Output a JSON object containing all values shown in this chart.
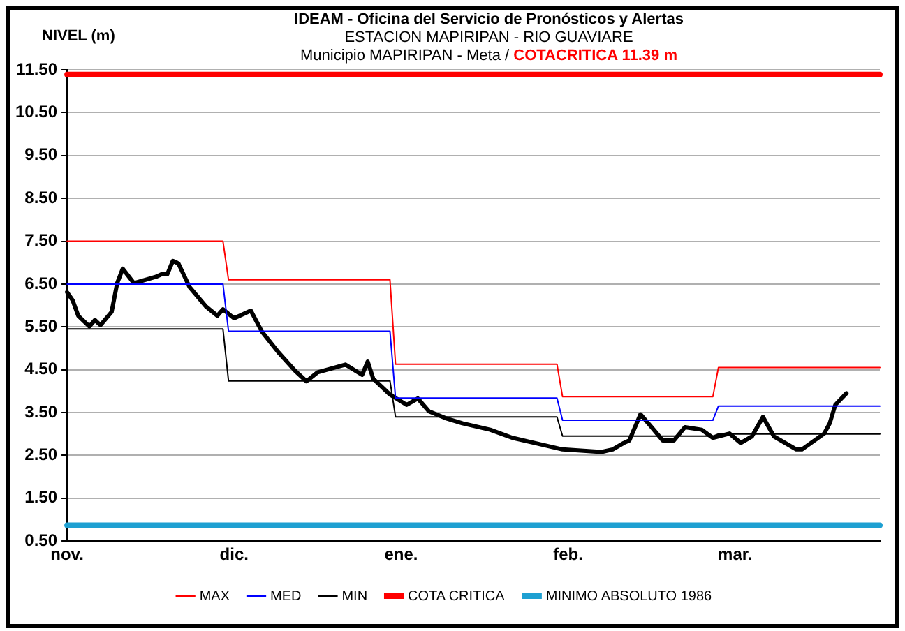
{
  "chart_data": {
    "type": "line",
    "title": "IDEAM - Oficina del Servicio de Pronósticos y Alertas",
    "subtitle": "ESTACION MAPIRIPAN -  RIO GUAVIARE\nMunicipio MAPIRIPAN -  Meta  /",
    "annotations": [
      "COTACRITICA 11.39 m"
    ],
    "ylabel": "NIVEL (m)",
    "categories": [
      "nov.",
      null,
      null,
      null,
      null,
      null,
      null,
      null,
      null,
      null,
      null,
      null,
      null,
      null,
      null,
      null,
      null,
      null,
      null,
      null,
      null,
      null,
      null,
      null,
      null,
      null,
      null,
      null,
      null,
      null,
      "dic.",
      null,
      null,
      null,
      null,
      null,
      null,
      null,
      null,
      null,
      null,
      null,
      null,
      null,
      null,
      null,
      null,
      null,
      null,
      null,
      null,
      null,
      null,
      null,
      null,
      null,
      null,
      null,
      null,
      null,
      "ene.",
      null,
      null,
      null,
      null,
      null,
      null,
      null,
      null,
      null,
      null,
      null,
      null,
      null,
      null,
      null,
      null,
      null,
      null,
      null,
      null,
      null,
      null,
      null,
      null,
      null,
      null,
      null,
      null,
      null,
      "feb.",
      null,
      null,
      null,
      null,
      null,
      null,
      null,
      null,
      null,
      null,
      null,
      null,
      null,
      null,
      null,
      null,
      null,
      null,
      null,
      null,
      null,
      null,
      null,
      null,
      null,
      null,
      null,
      null,
      null,
      "mar.",
      null,
      null,
      null,
      null,
      null,
      null,
      null,
      null,
      null,
      null,
      null,
      null,
      null,
      null,
      null,
      null,
      null,
      null,
      null,
      null,
      null,
      null,
      null,
      null,
      null,
      null
    ],
    "ylim": [
      0.5,
      11.5
    ],
    "yticks": [
      {
        "value": 0.5,
        "label": "0.50"
      },
      {
        "value": 1.5,
        "label": "1.50"
      },
      {
        "value": 2.5,
        "label": "2.50"
      },
      {
        "value": 3.5,
        "label": "3.50"
      },
      {
        "value": 4.5,
        "label": "4.50"
      },
      {
        "value": 5.5,
        "label": "5.50"
      },
      {
        "value": 6.5,
        "label": "6.50"
      },
      {
        "value": 7.5,
        "label": "7.50"
      },
      {
        "value": 8.5,
        "label": "8.50"
      },
      {
        "value": 9.5,
        "label": "9.50"
      },
      {
        "value": 10.5,
        "label": "10.50"
      },
      {
        "value": 11.5,
        "label": "11.50"
      }
    ],
    "grid": "y",
    "legend": "bottom",
    "marker": "none",
    "line_style": "solid",
    "series": [
      {
        "name": "MAX",
        "color": "#ff0000",
        "values": [
          7.5,
          null,
          null,
          null,
          null,
          null,
          null,
          null,
          null,
          null,
          null,
          null,
          null,
          null,
          null,
          null,
          null,
          null,
          null,
          null,
          null,
          null,
          null,
          null,
          null,
          null,
          null,
          null,
          7.5,
          6.6,
          null,
          null,
          null,
          null,
          null,
          null,
          null,
          null,
          null,
          null,
          null,
          null,
          null,
          null,
          null,
          null,
          null,
          null,
          null,
          null,
          null,
          null,
          null,
          null,
          null,
          null,
          null,
          null,
          6.6,
          4.63,
          null,
          null,
          null,
          null,
          null,
          null,
          null,
          null,
          null,
          null,
          null,
          null,
          null,
          null,
          null,
          null,
          null,
          null,
          null,
          null,
          null,
          null,
          null,
          null,
          null,
          null,
          null,
          null,
          4.63,
          3.87,
          null,
          null,
          null,
          null,
          null,
          null,
          null,
          null,
          null,
          null,
          null,
          null,
          null,
          null,
          null,
          null,
          null,
          null,
          null,
          null,
          null,
          null,
          null,
          null,
          null,
          null,
          3.87,
          4.55,
          null,
          null,
          null,
          null,
          null,
          null,
          null,
          null,
          null,
          null,
          null,
          null,
          null,
          null,
          null,
          null,
          null,
          null,
          null,
          null,
          null,
          null,
          null,
          null,
          null,
          null,
          null,
          null,
          4.55
        ]
      },
      {
        "name": "MED",
        "color": "#0000ff",
        "values": [
          6.5,
          null,
          null,
          null,
          null,
          null,
          null,
          null,
          null,
          null,
          null,
          null,
          null,
          null,
          null,
          null,
          null,
          null,
          null,
          null,
          null,
          null,
          null,
          null,
          null,
          null,
          null,
          null,
          6.5,
          5.4,
          null,
          null,
          null,
          null,
          null,
          null,
          null,
          null,
          null,
          null,
          null,
          null,
          null,
          null,
          null,
          null,
          null,
          null,
          null,
          null,
          null,
          null,
          null,
          null,
          null,
          null,
          null,
          null,
          5.4,
          3.84,
          null,
          null,
          null,
          null,
          null,
          null,
          null,
          null,
          null,
          null,
          null,
          null,
          null,
          null,
          null,
          null,
          null,
          null,
          null,
          null,
          null,
          null,
          null,
          null,
          null,
          null,
          null,
          null,
          3.84,
          3.32,
          null,
          null,
          null,
          null,
          null,
          null,
          null,
          null,
          null,
          null,
          null,
          null,
          null,
          null,
          null,
          null,
          null,
          null,
          null,
          null,
          null,
          null,
          null,
          null,
          null,
          null,
          3.32,
          3.65,
          null,
          null,
          null,
          null,
          null,
          null,
          null,
          null,
          null,
          null,
          null,
          null,
          null,
          null,
          null,
          null,
          null,
          null,
          null,
          null,
          null,
          null,
          null,
          null,
          null,
          null,
          null,
          null,
          3.65
        ]
      },
      {
        "name": "MIN",
        "color": "#000000",
        "values": [
          5.45,
          null,
          null,
          null,
          null,
          null,
          null,
          null,
          null,
          null,
          null,
          null,
          null,
          null,
          null,
          null,
          null,
          null,
          null,
          null,
          null,
          null,
          null,
          null,
          null,
          null,
          null,
          null,
          5.45,
          4.24,
          null,
          null,
          null,
          null,
          null,
          null,
          null,
          null,
          null,
          null,
          null,
          null,
          null,
          null,
          null,
          null,
          null,
          null,
          null,
          null,
          null,
          null,
          null,
          null,
          null,
          null,
          null,
          null,
          4.24,
          3.4,
          null,
          null,
          null,
          null,
          null,
          null,
          null,
          null,
          null,
          null,
          null,
          null,
          null,
          null,
          null,
          null,
          null,
          null,
          null,
          null,
          null,
          null,
          null,
          null,
          null,
          null,
          null,
          null,
          3.4,
          2.95,
          null,
          null,
          null,
          null,
          null,
          null,
          null,
          null,
          null,
          null,
          null,
          null,
          null,
          null,
          null,
          null,
          null,
          null,
          null,
          null,
          null,
          null,
          null,
          null,
          null,
          null,
          2.95,
          3.0,
          null,
          null,
          null,
          null,
          null,
          null,
          null,
          null,
          null,
          null,
          null,
          null,
          null,
          null,
          null,
          null,
          null,
          null,
          null,
          null,
          null,
          null,
          null,
          null,
          null,
          null,
          null,
          null,
          3.0
        ]
      },
      {
        "name": "COTA CRITICA",
        "color": "#ff0000",
        "values": [
          11.39,
          null,
          null,
          null,
          null,
          null,
          null,
          null,
          null,
          null,
          null,
          null,
          null,
          null,
          null,
          null,
          null,
          null,
          null,
          null,
          null,
          null,
          null,
          null,
          null,
          null,
          null,
          null,
          null,
          null,
          null,
          null,
          null,
          null,
          null,
          null,
          null,
          null,
          null,
          null,
          null,
          null,
          null,
          null,
          null,
          null,
          null,
          null,
          null,
          null,
          null,
          null,
          null,
          null,
          null,
          null,
          null,
          null,
          null,
          null,
          null,
          null,
          null,
          null,
          null,
          null,
          null,
          null,
          null,
          null,
          null,
          null,
          null,
          null,
          null,
          null,
          null,
          null,
          null,
          null,
          null,
          null,
          null,
          null,
          null,
          null,
          null,
          null,
          null,
          null,
          null,
          null,
          null,
          null,
          null,
          null,
          null,
          null,
          null,
          null,
          null,
          null,
          null,
          null,
          null,
          null,
          null,
          null,
          null,
          null,
          null,
          null,
          null,
          null,
          null,
          null,
          null,
          null,
          null,
          null,
          null,
          null,
          null,
          null,
          null,
          null,
          null,
          null,
          null,
          null,
          null,
          null,
          null,
          null,
          null,
          null,
          null,
          null,
          null,
          null,
          null,
          null,
          null,
          null,
          null,
          null,
          11.39
        ]
      },
      {
        "name": "MINIMO ABSOLUTO 1986",
        "color": "#1ea0d2",
        "values": [
          0.87,
          null,
          null,
          null,
          null,
          null,
          null,
          null,
          null,
          null,
          null,
          null,
          null,
          null,
          null,
          null,
          null,
          null,
          null,
          null,
          null,
          null,
          null,
          null,
          null,
          null,
          null,
          null,
          null,
          null,
          null,
          null,
          null,
          null,
          null,
          null,
          null,
          null,
          null,
          null,
          null,
          null,
          null,
          null,
          null,
          null,
          null,
          null,
          null,
          null,
          null,
          null,
          null,
          null,
          null,
          null,
          null,
          null,
          null,
          null,
          null,
          null,
          null,
          null,
          null,
          null,
          null,
          null,
          null,
          null,
          null,
          null,
          null,
          null,
          null,
          null,
          null,
          null,
          null,
          null,
          null,
          null,
          null,
          null,
          null,
          null,
          null,
          null,
          null,
          null,
          null,
          null,
          null,
          null,
          null,
          null,
          null,
          null,
          null,
          null,
          null,
          null,
          null,
          null,
          null,
          null,
          null,
          null,
          null,
          null,
          null,
          null,
          null,
          null,
          null,
          null,
          null,
          null,
          null,
          null,
          null,
          null,
          null,
          null,
          null,
          null,
          null,
          null,
          null,
          null,
          null,
          null,
          null,
          null,
          null,
          null,
          null,
          null,
          null,
          null,
          null,
          null,
          null,
          null,
          null,
          null,
          0.87
        ]
      },
      {
        "color": "#000000",
        "values": [
          6.31,
          6.12,
          5.76,
          null,
          5.51,
          5.66,
          5.54,
          null,
          5.85,
          6.52,
          6.86,
          null,
          6.52,
          null,
          null,
          null,
          6.67,
          6.73,
          6.73,
          7.04,
          6.98,
          null,
          6.43,
          null,
          null,
          5.97,
          null,
          5.76,
          5.91,
          null,
          5.7,
          null,
          null,
          5.88,
          null,
          5.39,
          null,
          null,
          4.9,
          null,
          null,
          4.47,
          null,
          4.23,
          null,
          4.44,
          null,
          null,
          null,
          null,
          4.62,
          null,
          null,
          4.38,
          4.69,
          4.29,
          null,
          null,
          3.92,
          null,
          null,
          3.68,
          null,
          3.83,
          null,
          3.53,
          null,
          null,
          3.37,
          null,
          null,
          3.25,
          null,
          null,
          null,
          null,
          3.1,
          null,
          null,
          null,
          2.91,
          null,
          null,
          null,
          null,
          null,
          null,
          null,
          null,
          2.64,
          null,
          null,
          null,
          null,
          null,
          null,
          2.58,
          null,
          2.64,
          null,
          2.79,
          2.85,
          null,
          3.46,
          null,
          3.16,
          null,
          2.85,
          null,
          2.85,
          null,
          3.16,
          null,
          null,
          3.1,
          null,
          2.91,
          null,
          null,
          3.01,
          null,
          2.79,
          null,
          2.94,
          null,
          3.4,
          null,
          2.94,
          null,
          null,
          null,
          2.64,
          2.64,
          null,
          null,
          null,
          3.01,
          3.25,
          3.68,
          null,
          3.95,
          null,
          null,
          null,
          null,
          null,
          null
        ]
      }
    ]
  }
}
